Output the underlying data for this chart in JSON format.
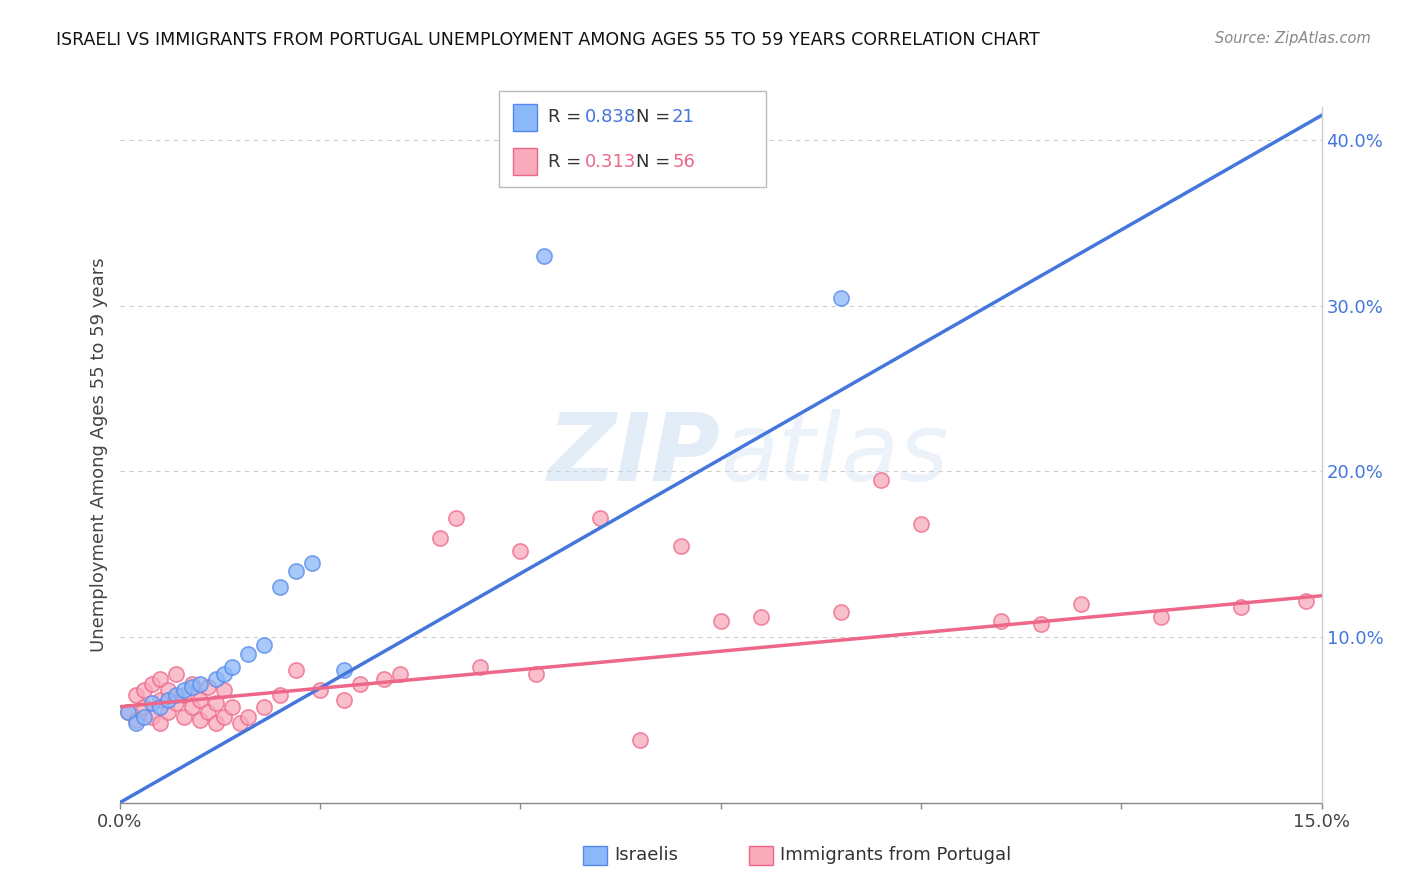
{
  "title": "ISRAELI VS IMMIGRANTS FROM PORTUGAL UNEMPLOYMENT AMONG AGES 55 TO 59 YEARS CORRELATION CHART",
  "source": "Source: ZipAtlas.com",
  "ylabel": "Unemployment Among Ages 55 to 59 years",
  "xlim": [
    0.0,
    0.15
  ],
  "ylim": [
    0.0,
    0.42
  ],
  "x_ticks": [
    0.0,
    0.025,
    0.05,
    0.075,
    0.1,
    0.125,
    0.15
  ],
  "y_ticks_right": [
    0.0,
    0.1,
    0.2,
    0.3,
    0.4
  ],
  "y_tick_labels_right": [
    "",
    "10.0%",
    "20.0%",
    "30.0%",
    "40.0%"
  ],
  "israeli_color": "#8BB8F8",
  "portugal_color": "#F9AABB",
  "israeli_edge_color": "#5588EE",
  "portugal_edge_color": "#EE6688",
  "israeli_line_color": "#4477DD",
  "portugal_line_color": "#EE6688",
  "watermark": "ZIPatlas",
  "israelis_scatter": [
    [
      0.001,
      0.055
    ],
    [
      0.002,
      0.048
    ],
    [
      0.003,
      0.052
    ],
    [
      0.004,
      0.06
    ],
    [
      0.005,
      0.058
    ],
    [
      0.006,
      0.062
    ],
    [
      0.007,
      0.065
    ],
    [
      0.008,
      0.068
    ],
    [
      0.009,
      0.07
    ],
    [
      0.01,
      0.072
    ],
    [
      0.012,
      0.075
    ],
    [
      0.013,
      0.078
    ],
    [
      0.014,
      0.082
    ],
    [
      0.016,
      0.09
    ],
    [
      0.018,
      0.095
    ],
    [
      0.02,
      0.13
    ],
    [
      0.022,
      0.14
    ],
    [
      0.024,
      0.145
    ],
    [
      0.028,
      0.08
    ],
    [
      0.053,
      0.33
    ],
    [
      0.09,
      0.305
    ]
  ],
  "portugal_scatter": [
    [
      0.001,
      0.055
    ],
    [
      0.002,
      0.05
    ],
    [
      0.002,
      0.065
    ],
    [
      0.003,
      0.058
    ],
    [
      0.003,
      0.068
    ],
    [
      0.004,
      0.052
    ],
    [
      0.004,
      0.072
    ],
    [
      0.005,
      0.048
    ],
    [
      0.005,
      0.062
    ],
    [
      0.005,
      0.075
    ],
    [
      0.006,
      0.055
    ],
    [
      0.006,
      0.068
    ],
    [
      0.007,
      0.06
    ],
    [
      0.007,
      0.078
    ],
    [
      0.008,
      0.052
    ],
    [
      0.008,
      0.065
    ],
    [
      0.009,
      0.058
    ],
    [
      0.009,
      0.072
    ],
    [
      0.01,
      0.05
    ],
    [
      0.01,
      0.062
    ],
    [
      0.011,
      0.055
    ],
    [
      0.011,
      0.07
    ],
    [
      0.012,
      0.048
    ],
    [
      0.012,
      0.06
    ],
    [
      0.013,
      0.052
    ],
    [
      0.013,
      0.068
    ],
    [
      0.014,
      0.058
    ],
    [
      0.015,
      0.048
    ],
    [
      0.016,
      0.052
    ],
    [
      0.018,
      0.058
    ],
    [
      0.02,
      0.065
    ],
    [
      0.022,
      0.08
    ],
    [
      0.025,
      0.068
    ],
    [
      0.028,
      0.062
    ],
    [
      0.03,
      0.072
    ],
    [
      0.033,
      0.075
    ],
    [
      0.035,
      0.078
    ],
    [
      0.04,
      0.16
    ],
    [
      0.042,
      0.172
    ],
    [
      0.045,
      0.082
    ],
    [
      0.05,
      0.152
    ],
    [
      0.052,
      0.078
    ],
    [
      0.06,
      0.172
    ],
    [
      0.065,
      0.038
    ],
    [
      0.07,
      0.155
    ],
    [
      0.075,
      0.11
    ],
    [
      0.08,
      0.112
    ],
    [
      0.09,
      0.115
    ],
    [
      0.095,
      0.195
    ],
    [
      0.1,
      0.168
    ],
    [
      0.11,
      0.11
    ],
    [
      0.115,
      0.108
    ],
    [
      0.12,
      0.12
    ],
    [
      0.13,
      0.112
    ],
    [
      0.14,
      0.118
    ],
    [
      0.148,
      0.122
    ]
  ],
  "israeli_trendline": [
    [
      0.0,
      0.0
    ],
    [
      0.15,
      0.415
    ]
  ],
  "portugal_trendline": [
    [
      0.0,
      0.058
    ],
    [
      0.15,
      0.125
    ]
  ]
}
